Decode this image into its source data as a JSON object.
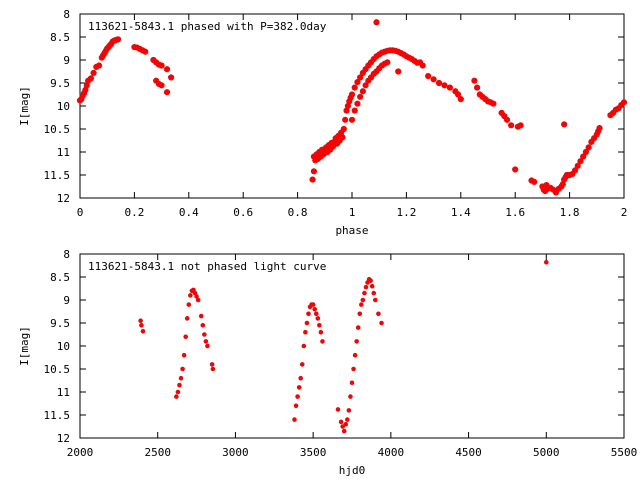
{
  "chart_data": [
    {
      "type": "scatter",
      "title": "113621-5843.1 phased with P=382.0day",
      "xlabel": "phase",
      "ylabel": "I[mag]",
      "xlim": [
        0,
        2
      ],
      "ylim": [
        12,
        8
      ],
      "y_inverted": true,
      "xticks": [
        "0",
        "0.2",
        "0.4",
        "0.6",
        "0.8",
        "1",
        "1.2",
        "1.4",
        "1.6",
        "1.8",
        "2"
      ],
      "yticks": [
        "8",
        "8.5",
        "9",
        "9.5",
        "10",
        "10.5",
        "11",
        "11.5",
        "12"
      ],
      "grid": false,
      "marker_color": "#ff0000",
      "series": [
        {
          "points": [
            [
              0.0,
              9.88
            ],
            [
              0.005,
              9.85
            ],
            [
              0.01,
              9.78
            ],
            [
              0.015,
              9.72
            ],
            [
              0.02,
              9.65
            ],
            [
              0.025,
              9.55
            ],
            [
              0.03,
              9.45
            ],
            [
              0.04,
              9.4
            ],
            [
              0.05,
              9.28
            ],
            [
              0.06,
              9.15
            ],
            [
              0.07,
              9.12
            ],
            [
              0.08,
              8.95
            ],
            [
              0.085,
              8.9
            ],
            [
              0.09,
              8.85
            ],
            [
              0.095,
              8.8
            ],
            [
              0.1,
              8.75
            ],
            [
              0.105,
              8.72
            ],
            [
              0.11,
              8.68
            ],
            [
              0.115,
              8.65
            ],
            [
              0.12,
              8.6
            ],
            [
              0.125,
              8.58
            ],
            [
              0.13,
              8.57
            ],
            [
              0.135,
              8.56
            ],
            [
              0.14,
              8.55
            ],
            [
              0.2,
              8.72
            ],
            [
              0.21,
              8.73
            ],
            [
              0.22,
              8.76
            ],
            [
              0.23,
              8.79
            ],
            [
              0.24,
              8.82
            ],
            [
              0.27,
              9.0
            ],
            [
              0.28,
              9.05
            ],
            [
              0.29,
              9.1
            ],
            [
              0.3,
              9.12
            ],
            [
              0.32,
              9.2
            ],
            [
              0.28,
              9.45
            ],
            [
              0.29,
              9.52
            ],
            [
              0.3,
              9.55
            ],
            [
              0.32,
              9.7
            ],
            [
              0.335,
              9.38
            ],
            [
              0.855,
              11.6
            ],
            [
              0.86,
              11.42
            ],
            [
              0.86,
              11.1
            ],
            [
              0.865,
              11.18
            ],
            [
              0.87,
              11.05
            ],
            [
              0.875,
              11.15
            ],
            [
              0.88,
              11.0
            ],
            [
              0.885,
              11.1
            ],
            [
              0.89,
              10.95
            ],
            [
              0.895,
              11.05
            ],
            [
              0.9,
              10.98
            ],
            [
              0.905,
              10.9
            ],
            [
              0.91,
              11.0
            ],
            [
              0.915,
              10.85
            ],
            [
              0.92,
              10.95
            ],
            [
              0.925,
              10.8
            ],
            [
              0.93,
              10.88
            ],
            [
              0.935,
              10.78
            ],
            [
              0.94,
              10.7
            ],
            [
              0.945,
              10.82
            ],
            [
              0.95,
              10.65
            ],
            [
              0.955,
              10.75
            ],
            [
              0.96,
              10.58
            ],
            [
              0.965,
              10.68
            ],
            [
              0.97,
              10.5
            ],
            [
              0.975,
              10.3
            ],
            [
              0.98,
              10.1
            ],
            [
              0.985,
              10.0
            ],
            [
              0.99,
              9.9
            ],
            [
              0.995,
              9.82
            ],
            [
              1.0,
              9.75
            ],
            [
              1.01,
              9.6
            ],
            [
              1.02,
              9.48
            ],
            [
              1.03,
              9.38
            ],
            [
              1.04,
              9.28
            ],
            [
              1.05,
              9.2
            ],
            [
              1.06,
              9.12
            ],
            [
              1.07,
              9.05
            ],
            [
              1.08,
              8.98
            ],
            [
              1.09,
              8.92
            ],
            [
              1.1,
              8.88
            ],
            [
              1.11,
              8.84
            ],
            [
              1.12,
              8.82
            ],
            [
              1.13,
              8.8
            ],
            [
              1.14,
              8.79
            ],
            [
              1.15,
              8.79
            ],
            [
              1.16,
              8.8
            ],
            [
              1.17,
              8.82
            ],
            [
              1.18,
              8.85
            ],
            [
              1.19,
              8.88
            ],
            [
              1.2,
              8.92
            ],
            [
              1.21,
              8.95
            ],
            [
              1.22,
              8.98
            ],
            [
              1.23,
              9.02
            ],
            [
              1.24,
              9.06
            ],
            [
              1.0,
              10.3
            ],
            [
              1.01,
              10.1
            ],
            [
              1.02,
              9.95
            ],
            [
              1.03,
              9.8
            ],
            [
              1.04,
              9.68
            ],
            [
              1.05,
              9.55
            ],
            [
              1.06,
              9.45
            ],
            [
              1.07,
              9.38
            ],
            [
              1.08,
              9.3
            ],
            [
              1.09,
              9.25
            ],
            [
              1.1,
              9.18
            ],
            [
              1.11,
              9.12
            ],
            [
              1.12,
              9.08
            ],
            [
              1.13,
              9.05
            ],
            [
              1.09,
              8.18
            ],
            [
              1.17,
              9.25
            ],
            [
              1.25,
              9.05
            ],
            [
              1.26,
              9.12
            ],
            [
              1.28,
              9.35
            ],
            [
              1.3,
              9.42
            ],
            [
              1.32,
              9.5
            ],
            [
              1.34,
              9.55
            ],
            [
              1.36,
              9.6
            ],
            [
              1.38,
              9.68
            ],
            [
              1.39,
              9.75
            ],
            [
              1.4,
              9.85
            ],
            [
              1.45,
              9.45
            ],
            [
              1.46,
              9.6
            ],
            [
              1.47,
              9.75
            ],
            [
              1.48,
              9.8
            ],
            [
              1.49,
              9.85
            ],
            [
              1.5,
              9.9
            ],
            [
              1.51,
              9.92
            ],
            [
              1.52,
              9.95
            ],
            [
              1.55,
              10.15
            ],
            [
              1.56,
              10.22
            ],
            [
              1.57,
              10.3
            ],
            [
              1.585,
              10.42
            ],
            [
              1.61,
              10.45
            ],
            [
              1.62,
              10.42
            ],
            [
              1.78,
              10.4
            ],
            [
              1.6,
              11.38
            ],
            [
              1.66,
              11.62
            ],
            [
              1.67,
              11.65
            ],
            [
              1.7,
              11.75
            ],
            [
              1.705,
              11.82
            ],
            [
              1.71,
              11.85
            ],
            [
              1.715,
              11.72
            ],
            [
              1.72,
              11.8
            ],
            [
              1.73,
              11.78
            ],
            [
              1.74,
              11.82
            ],
            [
              1.75,
              11.88
            ],
            [
              1.76,
              11.8
            ],
            [
              1.77,
              11.75
            ],
            [
              1.775,
              11.7
            ],
            [
              1.78,
              11.6
            ],
            [
              1.785,
              11.55
            ],
            [
              1.79,
              11.5
            ],
            [
              1.8,
              11.5
            ],
            [
              1.81,
              11.48
            ],
            [
              1.82,
              11.4
            ],
            [
              1.83,
              11.3
            ],
            [
              1.84,
              11.2
            ],
            [
              1.85,
              11.1
            ],
            [
              1.86,
              11.0
            ],
            [
              1.87,
              10.9
            ],
            [
              1.88,
              10.78
            ],
            [
              1.89,
              10.7
            ],
            [
              1.9,
              10.62
            ],
            [
              1.905,
              10.55
            ],
            [
              1.91,
              10.48
            ],
            [
              1.95,
              10.2
            ],
            [
              1.96,
              10.15
            ],
            [
              1.97,
              10.08
            ],
            [
              1.98,
              10.05
            ],
            [
              1.99,
              9.98
            ],
            [
              2.0,
              9.92
            ]
          ]
        }
      ]
    },
    {
      "type": "scatter",
      "title": "113621-5843.1 not phased light curve",
      "xlabel": "hjd0",
      "ylabel": "I[mag]",
      "xlim": [
        2000,
        5500
      ],
      "ylim": [
        12,
        8
      ],
      "y_inverted": true,
      "xticks": [
        "2000",
        "2500",
        "3000",
        "3500",
        "4000",
        "4500",
        "5000",
        "5500"
      ],
      "yticks": [
        "8",
        "8.5",
        "9",
        "9.5",
        "10",
        "10.5",
        "11",
        "11.5",
        "12"
      ],
      "grid": false,
      "marker_color": "#ff0000",
      "series": [
        {
          "points": [
            [
              2390,
              9.45
            ],
            [
              2395,
              9.55
            ],
            [
              2405,
              9.68
            ],
            [
              2620,
              11.1
            ],
            [
              2630,
              11.0
            ],
            [
              2640,
              10.85
            ],
            [
              2650,
              10.7
            ],
            [
              2660,
              10.5
            ],
            [
              2670,
              10.2
            ],
            [
              2680,
              9.8
            ],
            [
              2690,
              9.4
            ],
            [
              2700,
              9.1
            ],
            [
              2710,
              8.9
            ],
            [
              2720,
              8.8
            ],
            [
              2730,
              8.78
            ],
            [
              2740,
              8.85
            ],
            [
              2750,
              8.92
            ],
            [
              2760,
              9.0
            ],
            [
              2780,
              9.35
            ],
            [
              2790,
              9.55
            ],
            [
              2800,
              9.75
            ],
            [
              2810,
              9.9
            ],
            [
              2820,
              10.0
            ],
            [
              2850,
              10.4
            ],
            [
              2855,
              10.5
            ],
            [
              3380,
              11.6
            ],
            [
              3390,
              11.3
            ],
            [
              3400,
              11.1
            ],
            [
              3410,
              10.9
            ],
            [
              3420,
              10.7
            ],
            [
              3430,
              10.4
            ],
            [
              3440,
              10.0
            ],
            [
              3450,
              9.7
            ],
            [
              3460,
              9.5
            ],
            [
              3470,
              9.3
            ],
            [
              3480,
              9.15
            ],
            [
              3490,
              9.1
            ],
            [
              3500,
              9.1
            ],
            [
              3510,
              9.2
            ],
            [
              3520,
              9.3
            ],
            [
              3530,
              9.4
            ],
            [
              3540,
              9.55
            ],
            [
              3550,
              9.7
            ],
            [
              3560,
              9.9
            ],
            [
              3660,
              11.38
            ],
            [
              3680,
              11.65
            ],
            [
              3690,
              11.75
            ],
            [
              3700,
              11.85
            ],
            [
              3710,
              11.7
            ],
            [
              3720,
              11.6
            ],
            [
              3730,
              11.4
            ],
            [
              3740,
              11.1
            ],
            [
              3750,
              10.8
            ],
            [
              3760,
              10.5
            ],
            [
              3770,
              10.2
            ],
            [
              3780,
              9.9
            ],
            [
              3790,
              9.6
            ],
            [
              3800,
              9.3
            ],
            [
              3810,
              9.1
            ],
            [
              3820,
              9.0
            ],
            [
              3830,
              8.85
            ],
            [
              3840,
              8.72
            ],
            [
              3850,
              8.62
            ],
            [
              3860,
              8.55
            ],
            [
              3870,
              8.58
            ],
            [
              3880,
              8.7
            ],
            [
              3890,
              8.85
            ],
            [
              3900,
              9.0
            ],
            [
              3920,
              9.3
            ],
            [
              3940,
              9.5
            ],
            [
              5000,
              8.18
            ]
          ]
        }
      ]
    }
  ]
}
